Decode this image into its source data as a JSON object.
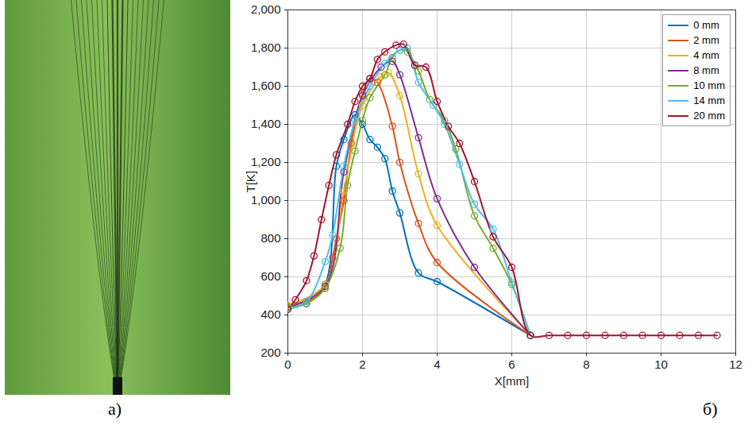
{
  "chart_data": {
    "type": "line",
    "xlabel": "X[mm]",
    "ylabel": "T[K]",
    "xlim": [
      0,
      12
    ],
    "xticks": [
      0,
      2,
      4,
      6,
      8,
      10,
      12
    ],
    "ylim": [
      200,
      2000
    ],
    "yticks": [
      200,
      400,
      600,
      800,
      1000,
      1200,
      1400,
      1600,
      1800,
      2000
    ],
    "grid": true,
    "legend": "top-right",
    "marker": "circle",
    "line_style": "solid",
    "series": [
      {
        "name": "0 mm",
        "color": "#0072BD",
        "x": [
          0,
          0.5,
          1,
          1.3,
          1.5,
          1.8,
          2,
          2.2,
          2.4,
          2.6,
          2.8,
          3,
          3.5,
          4,
          6.5
        ],
        "values": [
          440,
          460,
          560,
          1180,
          1320,
          1450,
          1400,
          1320,
          1280,
          1220,
          1050,
          935,
          620,
          575,
          293
        ]
      },
      {
        "name": "2 mm",
        "color": "#D95319",
        "x": [
          0,
          0.5,
          1,
          1.2,
          1.3,
          1.5,
          1.7,
          2,
          2.2,
          2.4,
          2.8,
          3,
          3.5,
          4,
          6.5
        ],
        "values": [
          450,
          470,
          540,
          700,
          800,
          1000,
          1300,
          1560,
          1640,
          1620,
          1390,
          1200,
          880,
          675,
          293
        ]
      },
      {
        "name": "4 mm",
        "color": "#EDB120",
        "x": [
          0,
          1,
          1.5,
          2,
          2.5,
          2.7,
          3,
          3.5,
          4,
          6.5
        ],
        "values": [
          450,
          560,
          1050,
          1500,
          1650,
          1670,
          1550,
          1140,
          870,
          293
        ]
      },
      {
        "name": "8 mm",
        "color": "#7E2F8E",
        "x": [
          0,
          1,
          1.5,
          2,
          2.5,
          2.8,
          3,
          3.5,
          4,
          5,
          6.5
        ],
        "values": [
          440,
          550,
          1150,
          1550,
          1700,
          1730,
          1660,
          1330,
          1010,
          650,
          293
        ]
      },
      {
        "name": "10 mm",
        "color": "#77AC30",
        "x": [
          0,
          0.5,
          1,
          1.4,
          1.6,
          1.8,
          2,
          2.2,
          2.6,
          2.8,
          3,
          3.2,
          3.5,
          3.8,
          4.2,
          4.5,
          5,
          5.5,
          6,
          6.5
        ],
        "values": [
          440,
          460,
          540,
          750,
          1080,
          1260,
          1420,
          1540,
          1660,
          1750,
          1790,
          1780,
          1680,
          1530,
          1420,
          1270,
          920,
          750,
          560,
          293
        ]
      },
      {
        "name": "14 mm",
        "color": "#4DBEEE",
        "x": [
          0,
          0.5,
          1,
          1.2,
          1.5,
          1.8,
          2.2,
          2.6,
          3,
          3.2,
          3.5,
          3.9,
          4.2,
          4.6,
          5,
          5.5,
          6,
          6.5
        ],
        "values": [
          430,
          470,
          680,
          820,
          1180,
          1420,
          1600,
          1720,
          1790,
          1800,
          1620,
          1500,
          1400,
          1190,
          980,
          850,
          570,
          293
        ]
      },
      {
        "name": "20 mm",
        "color": "#A2142F",
        "x": [
          0,
          0.2,
          0.5,
          0.7,
          0.9,
          1.1,
          1.3,
          1.6,
          1.8,
          2,
          2.2,
          2.4,
          2.6,
          2.9,
          3.1,
          3.4,
          3.7,
          4,
          4.3,
          4.6,
          5,
          5.5,
          6,
          6.5,
          7,
          7.5,
          8,
          8.5,
          9,
          9.5,
          10,
          10.5,
          11,
          11.5
        ],
        "values": [
          430,
          480,
          580,
          710,
          900,
          1080,
          1240,
          1400,
          1520,
          1600,
          1640,
          1740,
          1780,
          1815,
          1820,
          1710,
          1700,
          1520,
          1390,
          1300,
          1100,
          810,
          650,
          293,
          293,
          293,
          293,
          293,
          293,
          293,
          293,
          293,
          293,
          293
        ]
      }
    ]
  },
  "panel_labels": [
    "а)",
    "б)"
  ]
}
